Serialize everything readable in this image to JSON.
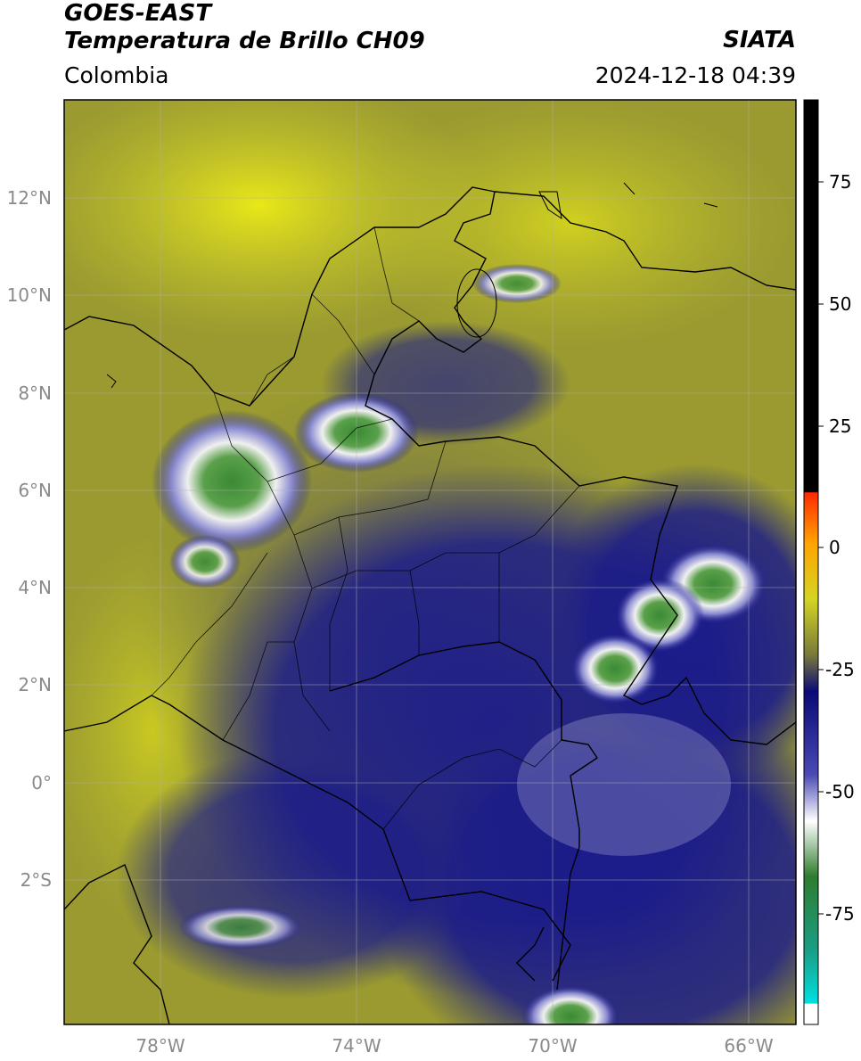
{
  "header": {
    "satellite": "GOES-EAST",
    "product": "Temperatura de Brillo CH09",
    "region": "Colombia",
    "organization": "SIATA",
    "timestamp": "2024-12-18 04:39"
  },
  "map": {
    "lat_ticks": [
      "12°N",
      "10°N",
      "8°N",
      "6°N",
      "4°N",
      "2°N",
      "0°",
      "2°S"
    ],
    "lon_ticks": [
      "78°W",
      "74°W",
      "70°W",
      "66°W"
    ],
    "extent": {
      "lon_min": -80,
      "lon_max": -65,
      "lat_min": -5,
      "lat_max": 14
    },
    "background_color": "#9a9a30"
  },
  "colorbar": {
    "ticks": [
      "75",
      "50",
      "25",
      "0",
      "-25",
      "-50",
      "-75"
    ],
    "colors": [
      "#ffffff",
      "#00e0e0",
      "#1a9e86",
      "#2e7d2e",
      "#ffffff",
      "#4a4ab4",
      "#0a0a78",
      "#7a7a3a",
      "#d4d424",
      "#ffa500",
      "#ff2a00",
      "#000000"
    ]
  }
}
